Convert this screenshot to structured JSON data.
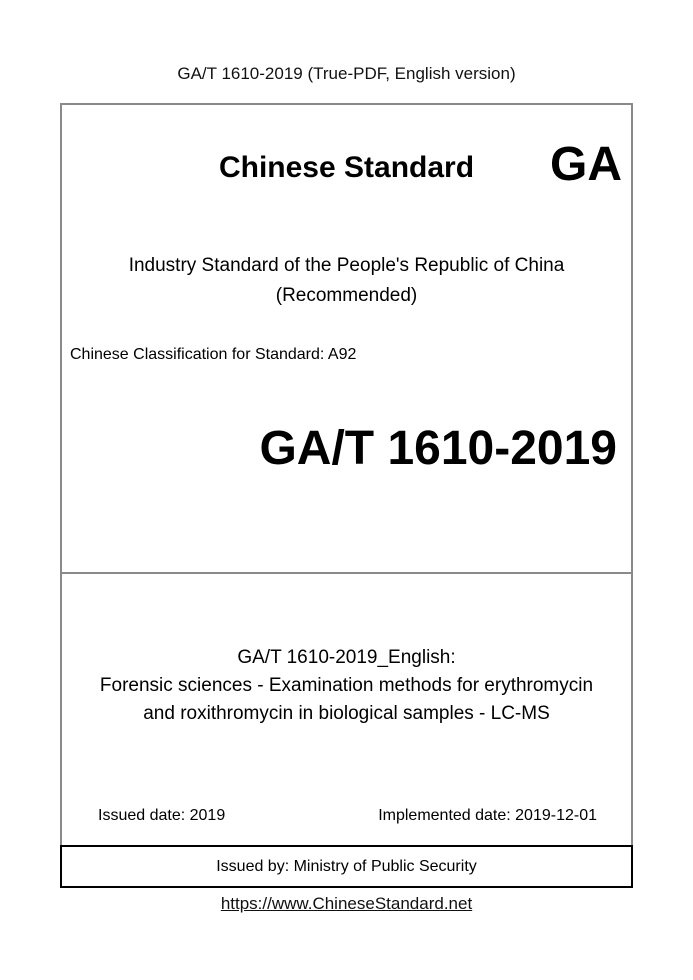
{
  "page": {
    "header": "GA/T 1610-2019 (True-PDF, English version)",
    "footer_url": "https://www.ChineseStandard.net"
  },
  "cover": {
    "brand_title": "Chinese Standard",
    "brand_logo": "GA",
    "standard_type_line1": "Industry Standard of the People's Republic of China",
    "standard_type_line2": "(Recommended)",
    "classification": "Chinese Classification for Standard: A92",
    "standard_number": "GA/T 1610-2019",
    "english_title_line1": "GA/T 1610-2019_English:",
    "english_title_line2": "Forensic sciences - Examination methods for erythromycin",
    "english_title_line3": "and roxithromycin in biological samples - LC-MS",
    "issued_date": "Issued date: 2019",
    "implemented_date": "Implemented date: 2019-12-01",
    "issued_by": "Issued by: Ministry of Public Security"
  }
}
